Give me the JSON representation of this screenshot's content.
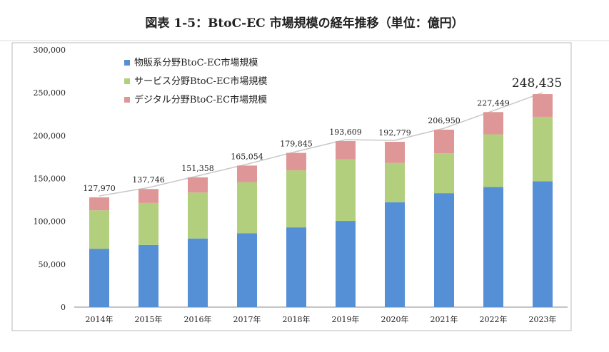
{
  "chart_data": {
    "type": "bar",
    "stacked": true,
    "title": "図表 1-5：BtoC-EC 市場規模の経年推移（単位：億円）",
    "xlabel": "",
    "ylabel": "",
    "ylim": [
      0,
      300000
    ],
    "yticks": [
      0,
      50000,
      100000,
      150000,
      200000,
      250000,
      300000
    ],
    "ytick_labels": [
      "0",
      "50,000",
      "100,000",
      "150,000",
      "200,000",
      "250,000",
      "300,000"
    ],
    "categories": [
      "2014年",
      "2015年",
      "2016年",
      "2017年",
      "2018年",
      "2019年",
      "2020年",
      "2021年",
      "2022年",
      "2023年"
    ],
    "series": [
      {
        "name": "物販系分野BtoC-EC市場規模",
        "color": "#5590D6",
        "values": [
          68043,
          72398,
          80043,
          86008,
          92992,
          100515,
          122333,
          132865,
          139997,
          146760
        ]
      },
      {
        "name": "サービス分野BtoC-EC市場規模",
        "color": "#B2CF7E",
        "values": [
          44816,
          49014,
          53532,
          59568,
          66471,
          71672,
          45832,
          46424,
          61477,
          75169
        ]
      },
      {
        "name": "デジタル分野BtoC-EC市場規模",
        "color": "#DE9696",
        "values": [
          15111,
          16334,
          17783,
          19478,
          20382,
          21422,
          24614,
          27661,
          25974,
          26506
        ]
      }
    ],
    "totals": [
      127970,
      137746,
      151358,
      165054,
      179845,
      193609,
      192779,
      206950,
      227449,
      248435
    ],
    "total_labels": [
      "127,970",
      "137,746",
      "151,358",
      "165,054",
      "179,845",
      "193,609",
      "192,779",
      "206,950",
      "227,449",
      "248,435"
    ],
    "legend_position": "top-left",
    "grid": false
  }
}
